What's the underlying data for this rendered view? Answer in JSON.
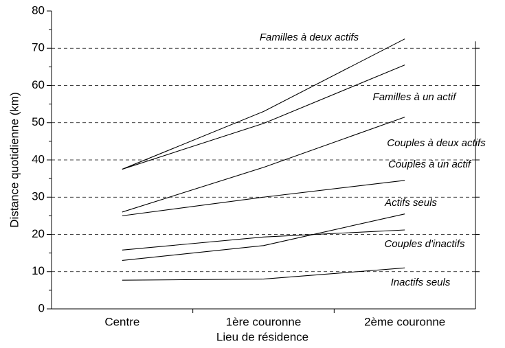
{
  "chart_data": {
    "type": "line",
    "x_label": "Lieu de résidence",
    "y_label": "Distance quotidienne (km)",
    "categories": [
      "Centre",
      "1ère couronne",
      "2ème couronne"
    ],
    "series": [
      {
        "name": "Familles à deux actifs",
        "color": "#000000",
        "values": [
          37.5,
          53,
          72.5
        ]
      },
      {
        "name": "Familles à un actif",
        "color": "#000000",
        "values": [
          37.5,
          49.8,
          65.5
        ]
      },
      {
        "name": "Couples à deux actifs",
        "color": "#000000",
        "values": [
          26,
          38,
          51.5
        ]
      },
      {
        "name": "Couples à un actif",
        "color": "#000000",
        "values": [
          25,
          30,
          34.5
        ]
      },
      {
        "name": "Actifs seuls",
        "color": "#000000",
        "values": [
          13,
          17,
          25.5
        ]
      },
      {
        "name": "Couples d'inactifs",
        "color": "#000000",
        "values": [
          15.8,
          19.3,
          21.2
        ]
      },
      {
        "name": "Inactifs seuls",
        "color": "#000000",
        "values": [
          7.7,
          8,
          11
        ]
      }
    ],
    "ylim": [
      0,
      80
    ],
    "yticks": [
      0,
      10,
      20,
      30,
      40,
      50,
      60,
      70,
      80
    ],
    "grid": true
  }
}
